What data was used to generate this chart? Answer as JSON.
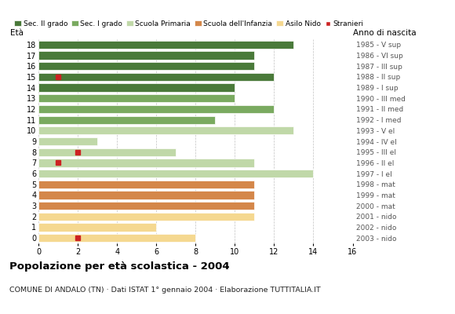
{
  "ages": [
    18,
    17,
    16,
    15,
    14,
    13,
    12,
    11,
    10,
    9,
    8,
    7,
    6,
    5,
    4,
    3,
    2,
    1,
    0
  ],
  "anni_nascita": [
    "1985 - V sup",
    "1986 - VI sup",
    "1987 - III sup",
    "1988 - II sup",
    "1989 - I sup",
    "1990 - III med",
    "1991 - II med",
    "1992 - I med",
    "1993 - V el",
    "1994 - IV el",
    "1995 - III el",
    "1996 - II el",
    "1997 - I el",
    "1998 - mat",
    "1999 - mat",
    "2000 - mat",
    "2001 - nido",
    "2002 - nido",
    "2003 - nido"
  ],
  "bar_values": [
    13,
    11,
    11,
    12,
    10,
    10,
    12,
    9,
    13,
    3,
    7,
    11,
    14,
    11,
    11,
    11,
    11,
    6,
    8
  ],
  "stranieri": [
    null,
    null,
    null,
    1,
    null,
    null,
    null,
    null,
    null,
    null,
    2,
    1,
    null,
    null,
    null,
    null,
    null,
    null,
    2
  ],
  "bar_colors": [
    "#4a7a3a",
    "#4a7a3a",
    "#4a7a3a",
    "#4a7a3a",
    "#4a7a3a",
    "#7aaa60",
    "#7aaa60",
    "#7aaa60",
    "#c0d8a8",
    "#c0d8a8",
    "#c0d8a8",
    "#c0d8a8",
    "#c0d8a8",
    "#d4874a",
    "#d4874a",
    "#d4874a",
    "#f5d890",
    "#f5d890",
    "#f5d890"
  ],
  "legend_labels": [
    "Sec. II grado",
    "Sec. I grado",
    "Scuola Primaria",
    "Scuola dell'Infanzia",
    "Asilo Nido",
    "Stranieri"
  ],
  "legend_colors": [
    "#4a7a3a",
    "#7aaa60",
    "#c0d8a8",
    "#d4874a",
    "#f5d890",
    "#cc2222"
  ],
  "title": "Popolazione per età scolastica - 2004",
  "subtitle": "COMUNE DI ANDALO (TN) · Dati ISTAT 1° gennaio 2004 · Elaborazione TUTTITALIA.IT",
  "label_left": "Età",
  "label_right": "Anno di nascita",
  "xlim": [
    0,
    16
  ],
  "xticks": [
    0,
    2,
    4,
    6,
    8,
    10,
    12,
    14,
    16
  ],
  "stranieri_color": "#cc2222",
  "bg_color": "#ffffff",
  "grid_color": "#bbbbbb"
}
